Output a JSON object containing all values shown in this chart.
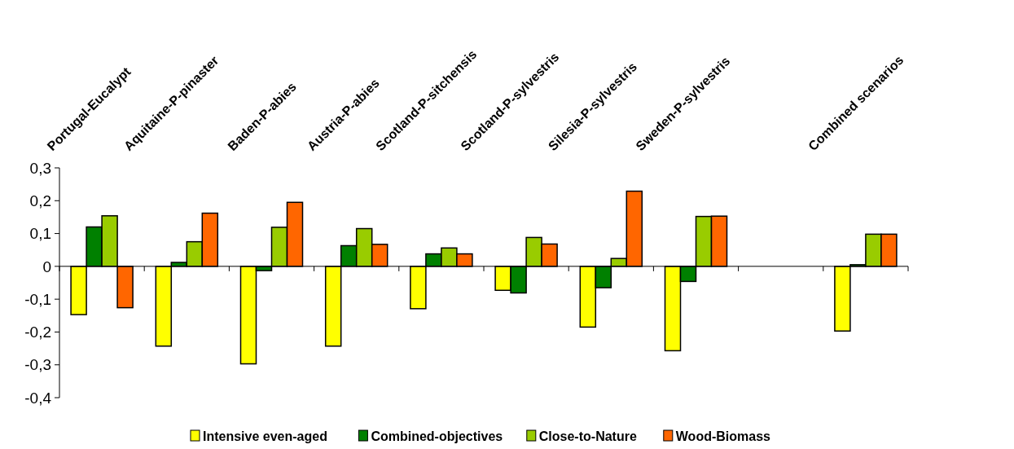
{
  "chart_data": {
    "type": "bar",
    "categories": [
      "Portugal-Eucalypt",
      "Aquitaine-P-pinaster",
      "Baden-P-abies",
      "Austria-P-abies",
      "Scotland-P-sitchensis",
      "Scotland-P-sylvestris",
      "Silesia-P-sylvestris",
      "Sweden-P-sylvestris",
      null,
      "Combined scenarios"
    ],
    "series": [
      {
        "name": "Intensive even-aged",
        "color": "#ffff00",
        "values": [
          -0.147,
          -0.243,
          -0.297,
          -0.243,
          -0.129,
          -0.073,
          -0.185,
          -0.257,
          null,
          -0.197
        ]
      },
      {
        "name": "Combined-objectives",
        "color": "#008000",
        "values": [
          0.12,
          0.012,
          -0.013,
          0.063,
          0.038,
          -0.081,
          -0.065,
          -0.046,
          null,
          0.005
        ]
      },
      {
        "name": "Close-to-Nature",
        "color": "#99cc00",
        "values": [
          0.154,
          0.075,
          0.119,
          0.115,
          0.056,
          0.088,
          0.024,
          0.152,
          null,
          0.098
        ]
      },
      {
        "name": "Wood-Biomass",
        "color": "#ff6600",
        "values": [
          -0.126,
          0.162,
          0.195,
          0.067,
          0.038,
          0.068,
          0.229,
          0.153,
          null,
          0.098
        ]
      }
    ],
    "ylim": [
      -0.4,
      0.3
    ],
    "yticks": [
      {
        "value": -0.4,
        "label": "-0,4"
      },
      {
        "value": -0.3,
        "label": "-0,3"
      },
      {
        "value": -0.2,
        "label": "-0,2"
      },
      {
        "value": -0.1,
        "label": "-0,1"
      },
      0,
      {
        "value": 0.1,
        "label": "0,1"
      },
      {
        "value": 0.2,
        "label": "0,2"
      },
      {
        "value": 0.3,
        "label": "0,3"
      }
    ],
    "legend": "bottom"
  }
}
